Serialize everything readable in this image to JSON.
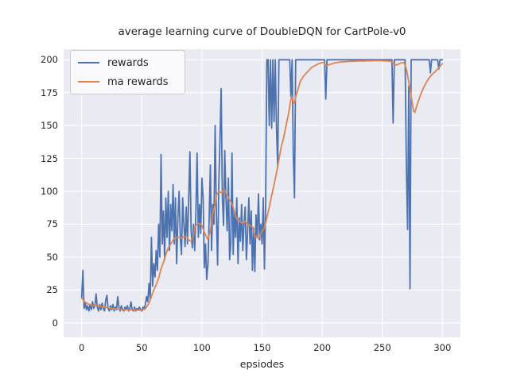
{
  "chart_data": {
    "type": "line",
    "title": "average learning curve of DoubleDQN for CartPole-v0",
    "xlabel": "epsiodes",
    "ylabel": "",
    "x": {
      "start": 0,
      "step": 1,
      "count": 301
    },
    "xlim": [
      -15,
      315
    ],
    "ylim": [
      -11,
      208
    ],
    "x_ticks": [
      0,
      50,
      100,
      150,
      200,
      250,
      300
    ],
    "y_ticks": [
      0,
      25,
      50,
      75,
      100,
      125,
      150,
      175,
      200
    ],
    "grid": true,
    "legend_position": "upper left",
    "style": {
      "axes_background": "#EAEAF2",
      "grid_color": "#FFFFFF",
      "text_color": "#262626",
      "legend_background": "#FAFAFC",
      "legend_border": "#CCCCCC",
      "line_width": 1.8
    },
    "series": [
      {
        "name": "rewards",
        "color": "#4C72B0",
        "values": [
          19,
          40,
          11,
          15,
          10,
          13,
          9,
          14,
          10,
          16,
          11,
          13,
          22,
          12,
          9,
          14,
          10,
          15,
          11,
          9,
          17,
          21,
          11,
          9,
          13,
          10,
          14,
          9,
          12,
          10,
          20,
          12,
          9,
          13,
          10,
          9,
          12,
          10,
          13,
          9,
          11,
          16,
          10,
          9,
          12,
          9,
          11,
          10,
          12,
          10,
          9,
          12,
          11,
          14,
          20,
          16,
          30,
          18,
          65,
          28,
          45,
          35,
          55,
          40,
          75,
          50,
          128,
          60,
          85,
          48,
          95,
          65,
          100,
          55,
          90,
          70,
          105,
          60,
          95,
          45,
          80,
          100,
          65,
          52,
          95,
          75,
          58,
          88,
          60,
          95,
          130,
          70,
          57,
          75,
          55,
          85,
          129,
          65,
          90,
          68,
          110,
          95,
          42,
          60,
          33,
          45,
          80,
          120,
          55,
          90,
          75,
          150,
          85,
          44,
          105,
          140,
          178,
          95,
          74,
          131,
          95,
          70,
          110,
          48,
          60,
          129,
          52,
          85,
          65,
          95,
          45,
          80,
          62,
          90,
          55,
          75,
          88,
          48,
          70,
          95,
          60,
          85,
          40,
          72,
          39,
          82,
          65,
          98,
          63,
          75,
          60,
          95,
          41,
          90,
          200,
          200,
          150,
          200,
          148,
          200,
          153,
          200,
          150,
          118,
          200,
          200,
          200,
          200,
          200,
          200,
          200,
          200,
          200,
          200,
          172,
          200,
          127,
          95,
          200,
          200,
          200,
          200,
          200,
          200,
          200,
          200,
          200,
          200,
          200,
          200,
          200,
          200,
          200,
          200,
          200,
          200,
          200,
          200,
          200,
          200,
          200,
          200,
          200,
          170,
          200,
          200,
          200,
          200,
          200,
          200,
          200,
          200,
          200,
          200,
          200,
          200,
          200,
          200,
          200,
          200,
          200,
          200,
          200,
          200,
          200,
          200,
          200,
          200,
          200,
          200,
          200,
          200,
          200,
          200,
          200,
          200,
          200,
          200,
          200,
          200,
          200,
          200,
          200,
          200,
          200,
          200,
          200,
          200,
          200,
          200,
          200,
          200,
          200,
          200,
          200,
          200,
          200,
          200,
          200,
          152,
          200,
          200,
          200,
          200,
          200,
          200,
          200,
          200,
          200,
          200,
          118,
          71,
          180,
          26,
          200,
          200,
          200,
          200,
          200,
          200,
          200,
          200,
          200,
          200,
          200,
          200,
          200,
          200,
          200,
          200,
          190,
          200,
          200,
          200,
          200,
          200,
          200,
          193,
          200,
          200,
          200
        ]
      },
      {
        "name": "ma rewards",
        "color": "#DD8452",
        "values": [
          19,
          17.8,
          16.5,
          15.8,
          15.2,
          14.5,
          14.2,
          13.8,
          13.5,
          13.3,
          13,
          13.2,
          13.3,
          13.5,
          13,
          12.5,
          12.3,
          12.2,
          12,
          11.9,
          11.8,
          11.6,
          11.5,
          11.3,
          11.2,
          11,
          10.9,
          10.8,
          10.7,
          10.6,
          10.5,
          10.4,
          10.3,
          10.2,
          10.1,
          10,
          10,
          10,
          10,
          10,
          10,
          10,
          9.9,
          9.9,
          9.8,
          9.8,
          9.8,
          9.7,
          9.7,
          9.6,
          9.6,
          9.8,
          10,
          11,
          12,
          13.5,
          15,
          17.5,
          20,
          22.5,
          25,
          27,
          29,
          31.5,
          34,
          37.5,
          41,
          43.5,
          46,
          49,
          52,
          54.5,
          57,
          58.5,
          60,
          61.5,
          63,
          63.8,
          64.5,
          64.8,
          65,
          64.8,
          64.7,
          64.5,
          65,
          65.5,
          65.8,
          66,
          64.5,
          63,
          62.5,
          62,
          64,
          66,
          73,
          74,
          75,
          75.3,
          75.5,
          74.8,
          74,
          71.5,
          69,
          67,
          65,
          63.5,
          66.8,
          70,
          76.5,
          83,
          86.5,
          90,
          97,
          98.5,
          100,
          99.5,
          99,
          99.8,
          100.5,
          101,
          99,
          97,
          95,
          93.5,
          92,
          90,
          88,
          84.5,
          81,
          79.5,
          78,
          77.3,
          76.5,
          76.3,
          76,
          76.5,
          77,
          76,
          75,
          74.5,
          74,
          73.5,
          73,
          69.5,
          66,
          65.5,
          65,
          64,
          66,
          68,
          70,
          71,
          72,
          76,
          80,
          84,
          88,
          92.5,
          97,
          101,
          105,
          109.5,
          114,
          119,
          124,
          129,
          134,
          137.5,
          141,
          145.5,
          150,
          154.5,
          159,
          164.5,
          170,
          172,
          168,
          167,
          172,
          175,
          178,
          181,
          184,
          185.3,
          186.7,
          188,
          189,
          190,
          191,
          192,
          193,
          194,
          194.5,
          195,
          195.5,
          196,
          196.5,
          197,
          197.3,
          197.5,
          197.8,
          197.7,
          197.5,
          195.5,
          195.8,
          196,
          196.3,
          196.6,
          196.9,
          197.2,
          197.5,
          197.6,
          197.8,
          197.9,
          198.1,
          198.2,
          198.3,
          198.4,
          198.4,
          198.5,
          198.6,
          198.6,
          198.7,
          198.7,
          198.8,
          198.8,
          198.8,
          198.9,
          198.9,
          199,
          199,
          199,
          199,
          199.1,
          199.1,
          199.1,
          199.1,
          199.2,
          199.2,
          199.2,
          199.2,
          199.2,
          199.2,
          199.3,
          199.3,
          199.3,
          199.3,
          199.3,
          199.3,
          199.3,
          199.3,
          199.2,
          199.2,
          199.1,
          199.1,
          199,
          198.8,
          198.7,
          198.5,
          197.5,
          196.5,
          196.3,
          196,
          196.5,
          197,
          197.3,
          197.5,
          197.8,
          198,
          195.5,
          193,
          188,
          183,
          177.5,
          172,
          166.5,
          161,
          160,
          163,
          166,
          168.7,
          171.3,
          174,
          176,
          178,
          180,
          181.7,
          183.3,
          185,
          186.2,
          187.3,
          188.5,
          189.3,
          190.2,
          191,
          192,
          193,
          194,
          195,
          196,
          197
        ]
      }
    ]
  }
}
